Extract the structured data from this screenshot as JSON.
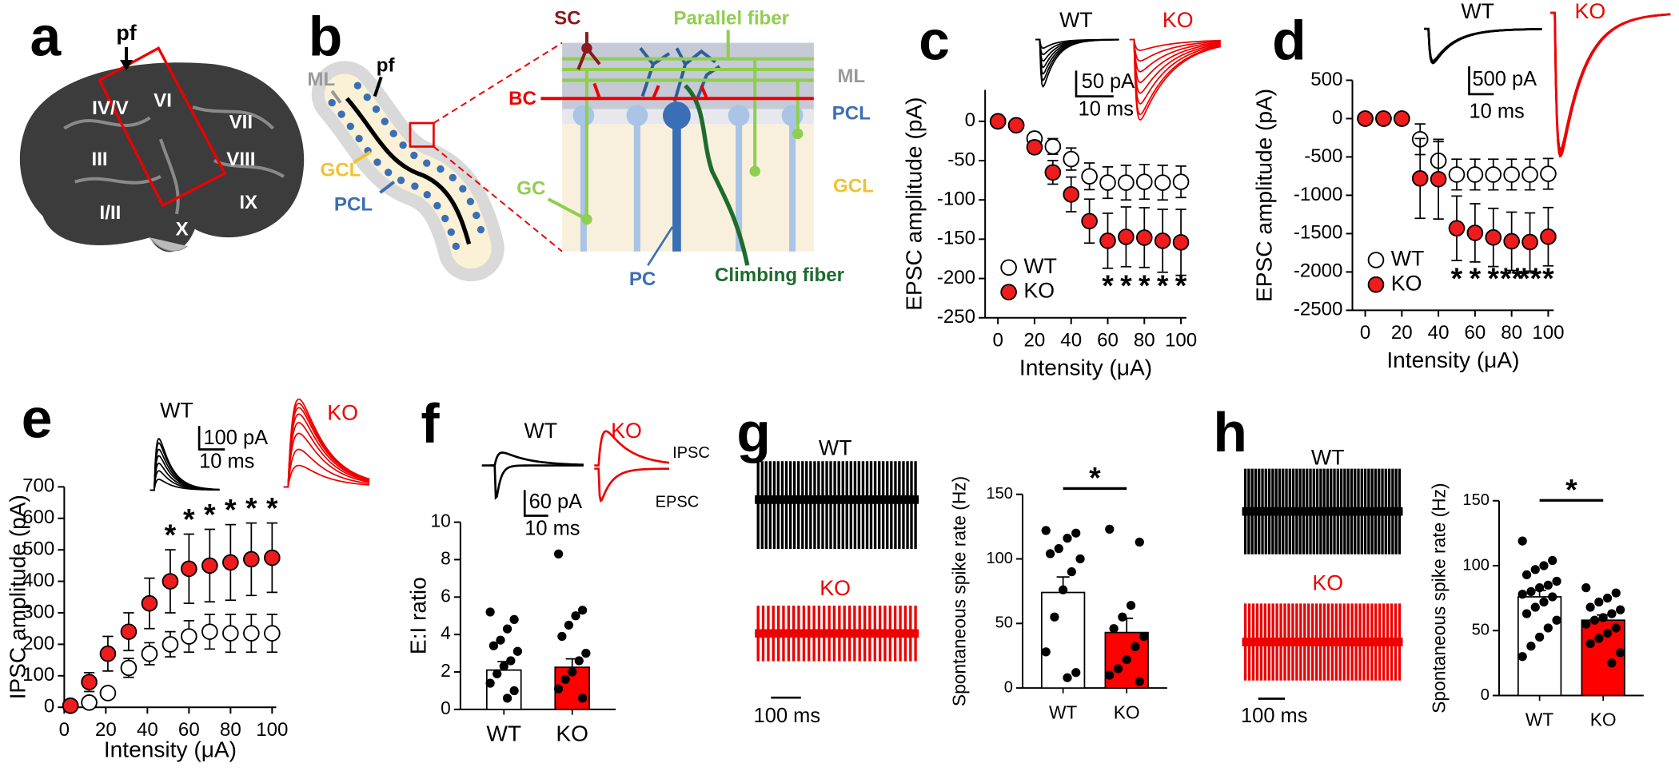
{
  "figure": {
    "letters": [
      "a",
      "b",
      "c",
      "d",
      "e",
      "f",
      "g",
      "h"
    ],
    "panel_a": [
      "pf",
      "IV/V",
      "VI",
      "VII",
      "VIII",
      "III",
      "I/II",
      "IX",
      "X"
    ],
    "panel_b": [
      "ML",
      "pf",
      "GCL",
      "PCL",
      "SC",
      "BC",
      "Parallel fiber",
      "ML",
      "PCL",
      "GCL",
      "GC",
      "PC",
      "Climbing fiber"
    ],
    "insets": [
      [
        "WT",
        "KO",
        "50 pA",
        "10 ms"
      ],
      [
        "WT",
        "KO",
        "500 pA",
        "10 ms"
      ],
      [
        "100 pA",
        "10 ms"
      ],
      [
        "WT",
        "KO",
        "IPSC",
        "EPSC",
        "60 pA",
        "10 ms"
      ],
      [
        "WT",
        "KO",
        "100 ms"
      ],
      [
        "WT",
        "KO",
        "100 ms"
      ]
    ]
  },
  "chart_data": [
    {
      "type": "line",
      "y_label": "EPSC amplitude (pA)",
      "x_label": "Intensity (μA)",
      "x": [
        0,
        10,
        20,
        30,
        40,
        50,
        60,
        70,
        80,
        90,
        100
      ],
      "series": [
        {
          "name": "WT",
          "color": "#000000",
          "marker_fill": "#ffffff",
          "values": [
            0,
            -5,
            -22,
            -32,
            -48,
            -70,
            -78,
            -78,
            -77,
            -78,
            -77
          ],
          "errors": [
            0,
            0,
            8,
            10,
            14,
            17,
            20,
            22,
            22,
            22,
            20
          ]
        },
        {
          "name": "KO",
          "color": "#000000",
          "marker_fill": "#ee1c1c",
          "values": [
            0,
            -5,
            -33,
            -65,
            -93,
            -127,
            -152,
            -147,
            -148,
            -152,
            -154
          ],
          "errors": [
            0,
            0,
            8,
            15,
            22,
            28,
            35,
            38,
            38,
            40,
            42
          ]
        }
      ],
      "significance": [
        null,
        null,
        null,
        null,
        null,
        null,
        "*",
        "*",
        "*",
        "*",
        "*"
      ],
      "xlim": [
        -7,
        103
      ],
      "ylim": [
        -250,
        40
      ],
      "xticks": [
        0,
        20,
        40,
        60,
        80,
        100
      ],
      "yticks": [
        0,
        -50,
        -100,
        -150,
        -200,
        -250
      ],
      "legend": "lower left"
    },
    {
      "type": "line",
      "y_label": "EPSC amplitude (pA)",
      "x_label": "Intensity (μA)",
      "x": [
        0,
        10,
        20,
        30,
        40,
        50,
        60,
        70,
        80,
        90,
        100
      ],
      "series": [
        {
          "name": "WT",
          "color": "#000000",
          "marker_fill": "#ffffff",
          "values": [
            0,
            0,
            0,
            -270,
            -550,
            -730,
            -730,
            -730,
            -730,
            -730,
            -720
          ],
          "errors": [
            0,
            0,
            0,
            200,
            250,
            200,
            200,
            200,
            200,
            200,
            200
          ]
        },
        {
          "name": "KO",
          "color": "#000000",
          "marker_fill": "#ee1c1c",
          "values": [
            0,
            0,
            0,
            -780,
            -790,
            -1430,
            -1490,
            -1550,
            -1600,
            -1610,
            -1540
          ],
          "errors": [
            0,
            0,
            0,
            520,
            520,
            420,
            380,
            380,
            380,
            380,
            380
          ]
        }
      ],
      "significance": [
        null,
        null,
        null,
        null,
        null,
        "*",
        "*",
        "*",
        "**",
        "**",
        "*"
      ],
      "xlim": [
        -7,
        103
      ],
      "ylim": [
        -2500,
        500
      ],
      "xticks": [
        0,
        20,
        40,
        60,
        80,
        100
      ],
      "yticks": [
        500,
        0,
        -500,
        -1000,
        -1500,
        -2000,
        -2500
      ],
      "legend": "lower left"
    },
    {
      "type": "line",
      "y_label": "IPSC amplitude (pA)",
      "x_label": "Intensity (μA)",
      "x": [
        3,
        12,
        21,
        31,
        41,
        51,
        60,
        70,
        80,
        90,
        100
      ],
      "series": [
        {
          "name": "WT",
          "color": "#000000",
          "marker_fill": "#ffffff",
          "values": [
            5,
            15,
            45,
            125,
            170,
            200,
            225,
            240,
            235,
            235,
            235
          ],
          "errors": [
            0,
            8,
            15,
            30,
            35,
            40,
            50,
            55,
            60,
            60,
            60
          ]
        },
        {
          "name": "KO",
          "color": "#000000",
          "marker_fill": "#ee1c1c",
          "values": [
            5,
            80,
            170,
            240,
            330,
            400,
            440,
            450,
            460,
            470,
            475
          ],
          "errors": [
            0,
            30,
            55,
            60,
            80,
            100,
            110,
            115,
            120,
            115,
            110
          ]
        }
      ],
      "significance": [
        null,
        null,
        null,
        null,
        null,
        "*",
        "*",
        "*",
        "*",
        "*",
        "*"
      ],
      "xlim": [
        0,
        102
      ],
      "ylim": [
        0,
        700
      ],
      "xticks": [
        0,
        20,
        40,
        60,
        80,
        100
      ],
      "yticks": [
        0,
        100,
        200,
        300,
        400,
        500,
        600,
        700
      ]
    },
    {
      "type": "bar",
      "y_label": "E:I ratio",
      "categories": [
        "WT",
        "KO"
      ],
      "values": [
        2.1,
        2.25
      ],
      "errors": [
        0.45,
        0.45
      ],
      "colors": [
        "#ffffff",
        "#ff0000"
      ],
      "points": [
        [
          5.2,
          4.8,
          4.3,
          3.7,
          3.4,
          3.1,
          2.6,
          2.3,
          1.9,
          1.4,
          1.0,
          0.6
        ],
        [
          8.3,
          5.3,
          5.0,
          4.5,
          3.9,
          3.0,
          2.6,
          2.0,
          1.6,
          1.1,
          0.6
        ]
      ],
      "ylim": [
        0,
        10
      ],
      "yticks": [
        0,
        2,
        4,
        6,
        8,
        10
      ]
    },
    {
      "type": "bar",
      "y_label": "Spontaneous spike rate (Hz)",
      "categories": [
        "WT",
        "KO"
      ],
      "values": [
        74,
        43
      ],
      "errors": [
        12,
        11
      ],
      "colors": [
        "#ffffff",
        "#ff0000"
      ],
      "points": [
        [
          122,
          120,
          116,
          108,
          104,
          100,
          90,
          76,
          55,
          28,
          12,
          8
        ],
        [
          123,
          113,
          64,
          55,
          46,
          40,
          32,
          22,
          15,
          10,
          5
        ]
      ],
      "significance": "*",
      "ylim": [
        0,
        150
      ],
      "yticks": [
        0,
        50,
        100,
        150
      ]
    },
    {
      "type": "bar",
      "y_label": "Spontaneous spike rate (Hz)",
      "categories": [
        "WT",
        "KO"
      ],
      "values": [
        76,
        58
      ],
      "errors": [
        5,
        4
      ],
      "colors": [
        "#ffffff",
        "#ff0000"
      ],
      "points": [
        [
          119,
          104,
          100,
          97,
          93,
          88,
          85,
          83,
          80,
          78,
          76,
          72,
          68,
          63,
          58,
          52,
          45,
          38,
          30
        ],
        [
          83,
          79,
          75,
          72,
          68,
          66,
          63,
          60,
          58,
          55,
          52,
          48,
          44,
          40,
          33,
          25
        ]
      ],
      "significance": "*",
      "ylim": [
        0,
        150
      ],
      "yticks": [
        0,
        50,
        100,
        150
      ]
    }
  ]
}
